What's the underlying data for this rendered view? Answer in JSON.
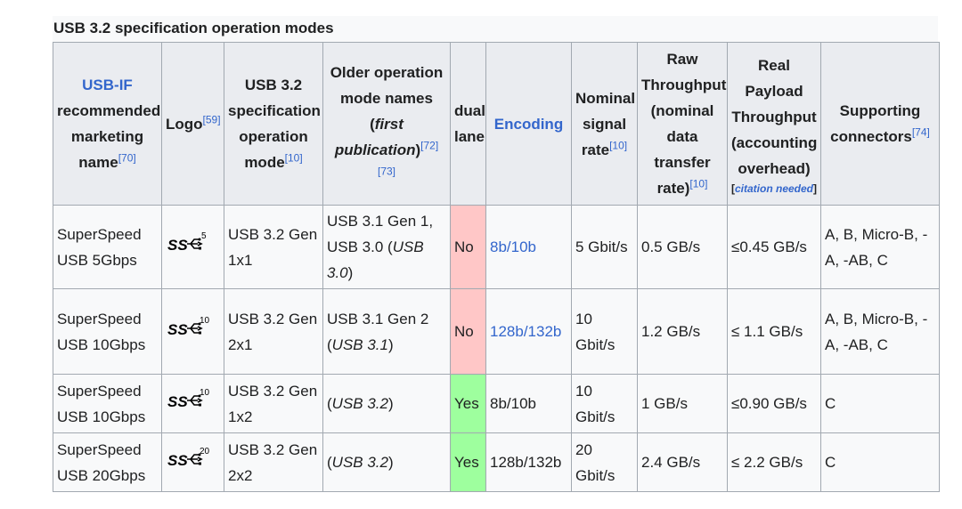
{
  "caption": "USB 3.2 specification operation modes",
  "headers": {
    "marketing_link": "USB-IF",
    "marketing_rest": "recommended marketing name",
    "marketing_ref": "[70]",
    "logo": "Logo",
    "logo_ref": "[59]",
    "spec_mode": "USB 3.2 specification operation mode",
    "spec_mode_ref": "[10]",
    "older_names": "Older operation mode names (",
    "older_names_italic": "first publication",
    "older_names_close": ")",
    "older_names_refs": "[72][73]",
    "dual_lane": "dual lane",
    "encoding": "Encoding",
    "nominal_rate": "Nominal signal rate",
    "nominal_rate_ref": "[10]",
    "raw_throughput": "Raw Throughput (nominal data transfer rate)",
    "raw_throughput_ref": "[10]",
    "real_payload": "Real Payload Throughput (accounting overhead)",
    "citation_open": "[",
    "citation_needed": "citation needed",
    "citation_close": "]",
    "connectors": "Supporting connectors",
    "connectors_ref": "[74]"
  },
  "rows": [
    {
      "name": "SuperSpeed USB 5Gbps",
      "logo_number": "5",
      "logo_icon": "superspeed-usb-logo",
      "spec_mode": "USB 3.2 Gen 1x1",
      "older_plain": "USB 3.1 Gen 1, USB 3.0 (",
      "older_italic": "USB 3.0",
      "older_close": ")",
      "dual_lane": "No",
      "encoding": "8b/10b",
      "encoding_is_link": true,
      "nominal_rate": "5 Gbit/s",
      "raw_throughput": "0.5 GB/s",
      "real_payload": "≤0.45 GB/s",
      "connectors": "A, B, Micro-B, -A, -AB, C"
    },
    {
      "name": "SuperSpeed USB 10Gbps",
      "logo_number": "10",
      "logo_icon": "superspeed-usb-logo",
      "spec_mode": "USB 3.2 Gen 2x1",
      "older_plain": "USB 3.1 Gen 2 (",
      "older_italic": "USB 3.1",
      "older_close": ")",
      "dual_lane": "No",
      "encoding": "128b/132b",
      "encoding_is_link": true,
      "nominal_rate": "10 Gbit/s",
      "raw_throughput": "1.2 GB/s",
      "real_payload": "≤ 1.1 GB/s",
      "connectors": "A, B, Micro-B, -A, -AB, C"
    },
    {
      "name": "SuperSpeed USB 10Gbps",
      "logo_number": "10",
      "logo_icon": "superspeed-usb-logo",
      "spec_mode": "USB 3.2 Gen 1x2",
      "older_plain": "(",
      "older_italic": "USB 3.2",
      "older_close": ")",
      "dual_lane": "Yes",
      "encoding": "8b/10b",
      "encoding_is_link": false,
      "nominal_rate": "10 Gbit/s",
      "raw_throughput": "1 GB/s",
      "real_payload": "≤0.90 GB/s",
      "connectors": "C"
    },
    {
      "name": "SuperSpeed USB 20Gbps",
      "logo_number": "20",
      "logo_icon": "superspeed-usb-logo",
      "spec_mode": "USB 3.2 Gen 2x2",
      "older_plain": "(",
      "older_italic": "USB 3.2",
      "older_close": ")",
      "dual_lane": "Yes",
      "encoding": "128b/132b",
      "encoding_is_link": false,
      "nominal_rate": "20 Gbit/s",
      "raw_throughput": "2.4 GB/s",
      "real_payload": "≤ 2.2 GB/s",
      "connectors": "C"
    }
  ],
  "colors": {
    "link": "#3366cc",
    "no_cell": "#ffc7c7",
    "yes_cell": "#9eff9e",
    "header_bg": "#eaecf0",
    "border": "#a2a9b1"
  }
}
